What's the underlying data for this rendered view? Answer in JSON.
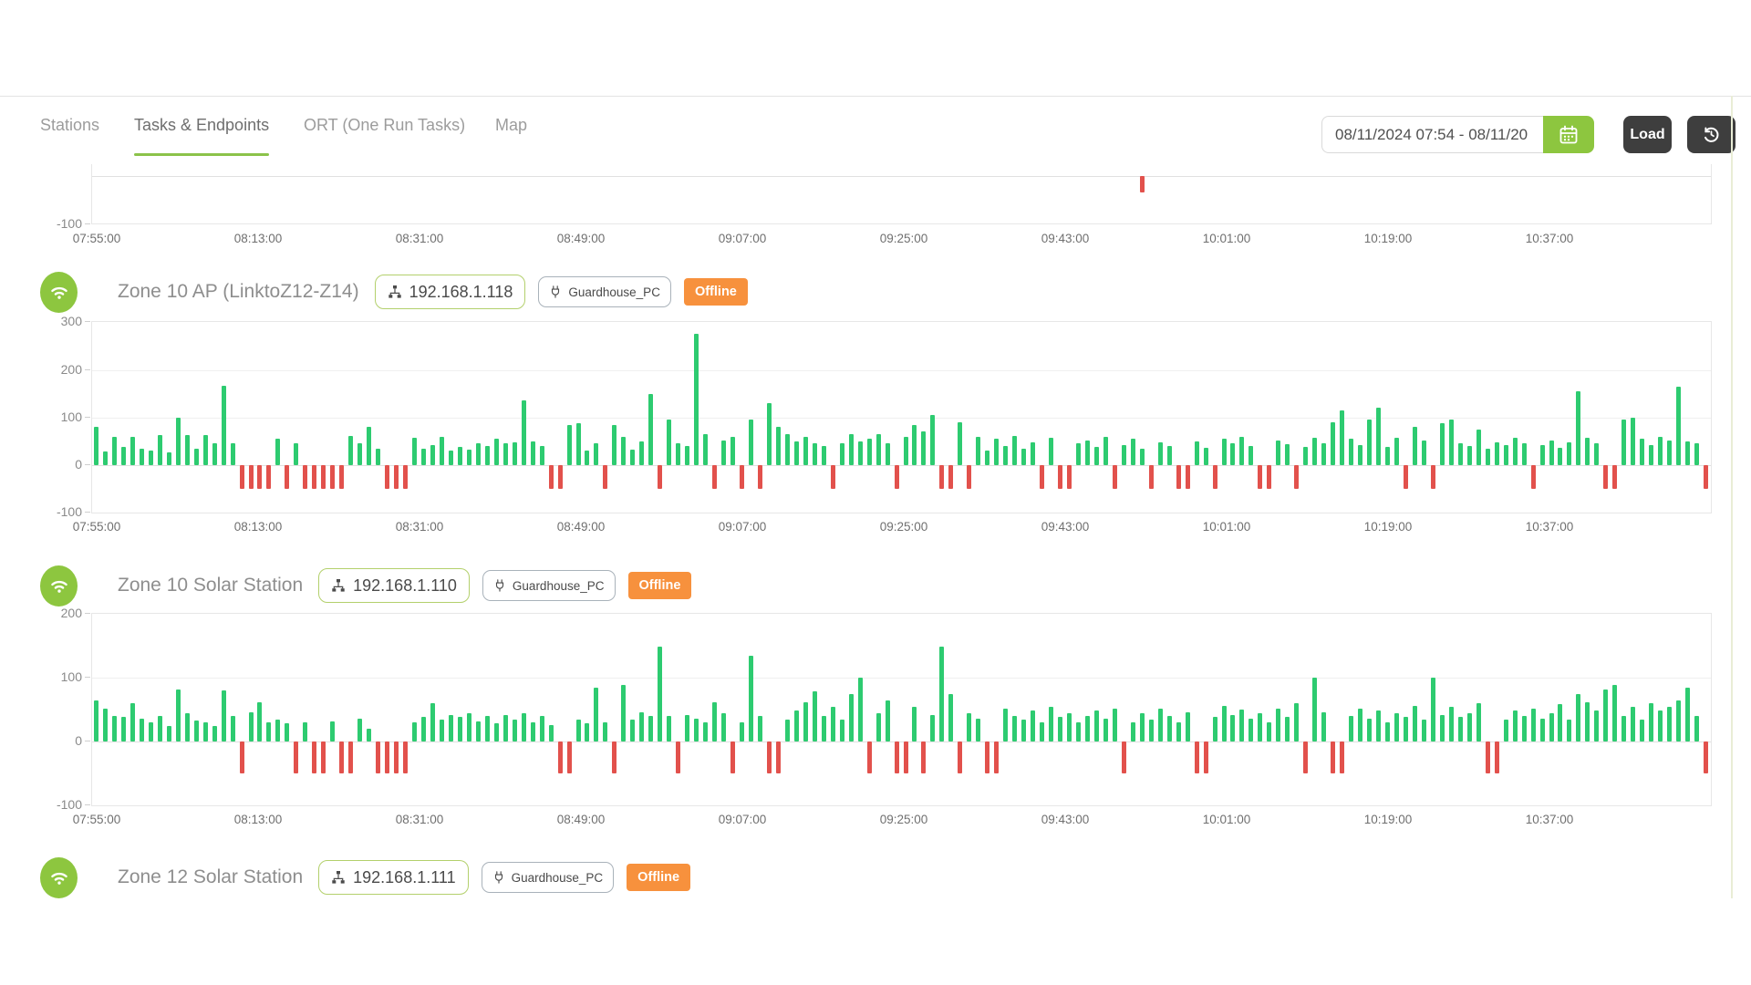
{
  "nav": {
    "tabs": [
      {
        "label": "Stations",
        "active": false
      },
      {
        "label": "Tasks & Endpoints",
        "active": true
      },
      {
        "label": "ORT (One Run Tasks)",
        "active": false
      },
      {
        "label": "Map",
        "active": false
      }
    ],
    "date_range_value": "08/11/2024 07:54 - 08/11/20",
    "load_label": "Load"
  },
  "stations": [
    {
      "name": "Zone 10 AP (LinktoZ12-Z14)",
      "ip": "192.168.1.118",
      "endpoint": "Guardhouse_PC",
      "status": "Offline"
    },
    {
      "name": "Zone 10 Solar Station",
      "ip": "192.168.1.110",
      "endpoint": "Guardhouse_PC",
      "status": "Offline"
    },
    {
      "name": "Zone 12 Solar Station",
      "ip": "192.168.1.111",
      "endpoint": "Guardhouse_PC",
      "status": "Offline"
    }
  ],
  "time_ticks": [
    "07:55:00",
    "08:13:00",
    "08:31:00",
    "08:49:00",
    "09:07:00",
    "09:25:00",
    "09:43:00",
    "10:01:00",
    "10:19:00",
    "10:37:00"
  ],
  "chart_data": [
    {
      "type": "bar",
      "title": "ping chart (bottom edge only, station scrolled off-screen)",
      "ylim": [
        -100,
        300
      ],
      "yticks": [
        -100
      ],
      "x_tick_labels": [
        "07:55:00",
        "08:13:00",
        "08:31:00",
        "08:49:00",
        "09:07:00",
        "09:25:00",
        "09:43:00",
        "10:01:00",
        "10:19:00",
        "10:37:00"
      ],
      "n_slots": 178,
      "points": [
        {
          "index": 115,
          "value": -35
        }
      ]
    },
    {
      "type": "bar",
      "title": "Zone 10 AP (LinktoZ12-Z14) ping",
      "ylim": [
        -100,
        300
      ],
      "yticks": [
        300,
        200,
        100,
        0,
        -100
      ],
      "x_tick_labels": [
        "07:55:00",
        "08:13:00",
        "08:31:00",
        "08:49:00",
        "09:07:00",
        "09:25:00",
        "09:43:00",
        "10:01:00",
        "10:19:00",
        "10:37:00"
      ],
      "values": [
        80,
        28,
        60,
        38,
        60,
        34,
        30,
        64,
        26,
        100,
        64,
        34,
        64,
        45,
        167,
        46,
        -50,
        -50,
        -50,
        -50,
        55,
        -50,
        45,
        -50,
        -50,
        -50,
        -50,
        -50,
        62,
        45,
        80,
        35,
        -50,
        -50,
        -50,
        58,
        35,
        42,
        60,
        30,
        38,
        32,
        45,
        40,
        55,
        45,
        48,
        135,
        50,
        40,
        -50,
        -50,
        85,
        88,
        30,
        46,
        -50,
        85,
        60,
        32,
        50,
        150,
        -50,
        95,
        46,
        40,
        275,
        65,
        -50,
        52,
        60,
        -50,
        95,
        -50,
        130,
        80,
        65,
        50,
        60,
        46,
        40,
        -50,
        46,
        65,
        50,
        55,
        66,
        45,
        -50,
        60,
        85,
        70,
        105,
        -50,
        -50,
        90,
        -50,
        60,
        30,
        55,
        40,
        62,
        35,
        48,
        -50,
        58,
        -50,
        -50,
        45,
        52,
        38,
        60,
        -50,
        42,
        55,
        35,
        -50,
        48,
        40,
        -50,
        -50,
        50,
        36,
        -50,
        55,
        45,
        60,
        40,
        -50,
        -50,
        52,
        44,
        -50,
        38,
        58,
        45,
        90,
        115,
        55,
        42,
        95,
        120,
        38,
        58,
        -50,
        80,
        52,
        -50,
        88,
        96,
        45,
        40,
        75,
        35,
        48,
        42,
        58,
        45,
        -50,
        42,
        52,
        36,
        48,
        155,
        58,
        45,
        -50,
        -50,
        96,
        100,
        55,
        42,
        60,
        52,
        165,
        50,
        45,
        -50
      ]
    },
    {
      "type": "bar",
      "title": "Zone 10 Solar Station ping",
      "ylim": [
        -100,
        200
      ],
      "yticks": [
        200,
        100,
        0,
        -100
      ],
      "x_tick_labels": [
        "07:55:00",
        "08:13:00",
        "08:31:00",
        "08:49:00",
        "09:07:00",
        "09:25:00",
        "09:43:00",
        "10:01:00",
        "10:19:00",
        "10:37:00"
      ],
      "values": [
        65,
        52,
        40,
        38,
        60,
        36,
        30,
        40,
        25,
        82,
        44,
        33,
        30,
        24,
        80,
        40,
        -50,
        46,
        62,
        30,
        35,
        28,
        -50,
        30,
        -50,
        -50,
        32,
        -50,
        -50,
        36,
        20,
        -50,
        -50,
        -50,
        -50,
        30,
        38,
        60,
        35,
        42,
        38,
        45,
        32,
        40,
        28,
        42,
        35,
        45,
        30,
        40,
        26,
        -50,
        -50,
        35,
        28,
        85,
        30,
        -50,
        88,
        35,
        46,
        40,
        148,
        40,
        -50,
        42,
        36,
        30,
        62,
        45,
        -50,
        30,
        135,
        40,
        -50,
        -50,
        35,
        48,
        62,
        78,
        40,
        55,
        35,
        75,
        100,
        -50,
        45,
        65,
        -50,
        -50,
        55,
        -50,
        42,
        148,
        75,
        -50,
        45,
        36,
        -50,
        -50,
        52,
        40,
        35,
        48,
        30,
        55,
        38,
        45,
        30,
        40,
        48,
        36,
        52,
        -50,
        30,
        44,
        35,
        52,
        40,
        30,
        46,
        -50,
        -50,
        38,
        56,
        42,
        50,
        36,
        44,
        30,
        52,
        38,
        60,
        -50,
        100,
        46,
        -50,
        -50,
        40,
        52,
        36,
        48,
        30,
        44,
        38,
        56,
        35,
        100,
        42,
        55,
        38,
        45,
        60,
        -50,
        -50,
        35,
        48,
        40,
        52,
        36,
        44,
        58,
        35,
        75,
        62,
        48,
        82,
        88,
        40,
        55,
        35,
        60,
        48,
        55,
        65,
        85,
        40,
        -50
      ]
    }
  ],
  "colors": {
    "accent_green": "#8dc63f",
    "tab_underline": "#8bc34a",
    "bar_ok": "#2dcb70",
    "bar_fail": "#e2514c",
    "offline_badge": "#f7913d",
    "dark_button": "#3e3e3e"
  }
}
